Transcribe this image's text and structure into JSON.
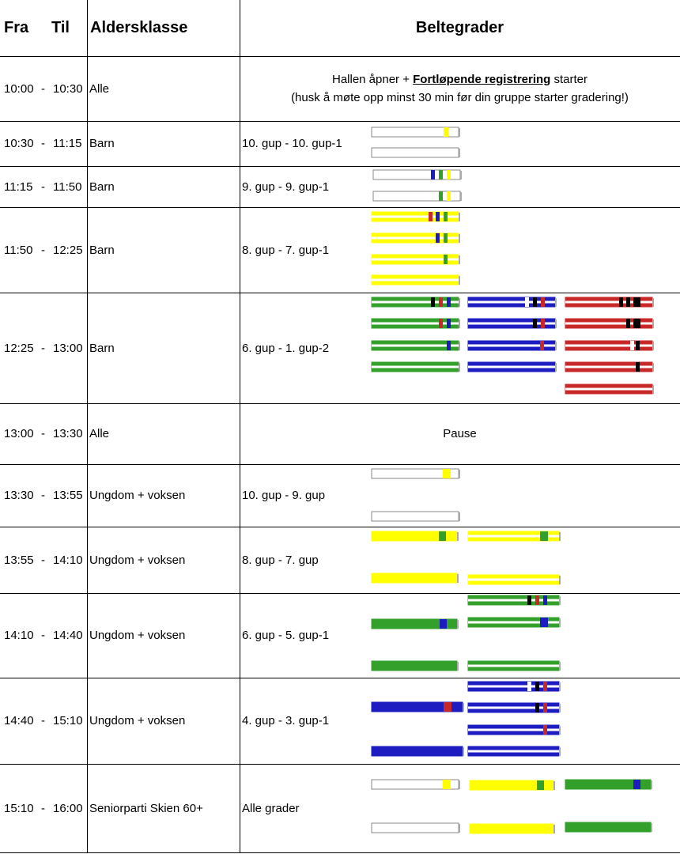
{
  "header": {
    "from": "Fra",
    "to": "Til",
    "age": "Aldersklasse",
    "grades": "Beltegrader"
  },
  "separator": "-",
  "rows": [
    {
      "from": "10:00",
      "to": "10:30",
      "age": "Alle",
      "notice": {
        "before": "Hallen åpner + ",
        "bold": "Fortløpende registrering",
        "after": " starter",
        "line2": "(husk å møte opp minst 30 min før din gruppe starter gradering!)"
      }
    },
    {
      "from": "10:30",
      "to": "11:15",
      "age": "Barn",
      "grades": "10. gup - 10. gup-1"
    },
    {
      "from": "11:15",
      "to": "11:50",
      "age": "Barn",
      "grades": "9. gup - 9. gup-1"
    },
    {
      "from": "11:50",
      "to": "12:25",
      "age": "Barn",
      "grades": "8. gup - 7. gup-1"
    },
    {
      "from": "12:25",
      "to": "13:00",
      "age": "Barn",
      "grades": "6. gup - 1. gup-2"
    },
    {
      "from": "13:00",
      "to": "13:30",
      "age": "Alle",
      "notice": {
        "line1": "Pause"
      }
    },
    {
      "from": "13:30",
      "to": "13:55",
      "age": "Ungdom + voksen",
      "grades": "10. gup - 9. gup"
    },
    {
      "from": "13:55",
      "to": "14:10",
      "age": "Ungdom + voksen",
      "grades": "8. gup - 7. gup"
    },
    {
      "from": "14:10",
      "to": "14:40",
      "age": "Ungdom + voksen",
      "grades": "6. gup - 5. gup-1"
    },
    {
      "from": "14:40",
      "to": "15:10",
      "age": "Ungdom + voksen",
      "grades": "4. gup - 3. gup-1"
    },
    {
      "from": "15:10",
      "to": "16:00",
      "age": "Seniorparti Skien 60+",
      "grades": "Alle grader"
    }
  ]
}
